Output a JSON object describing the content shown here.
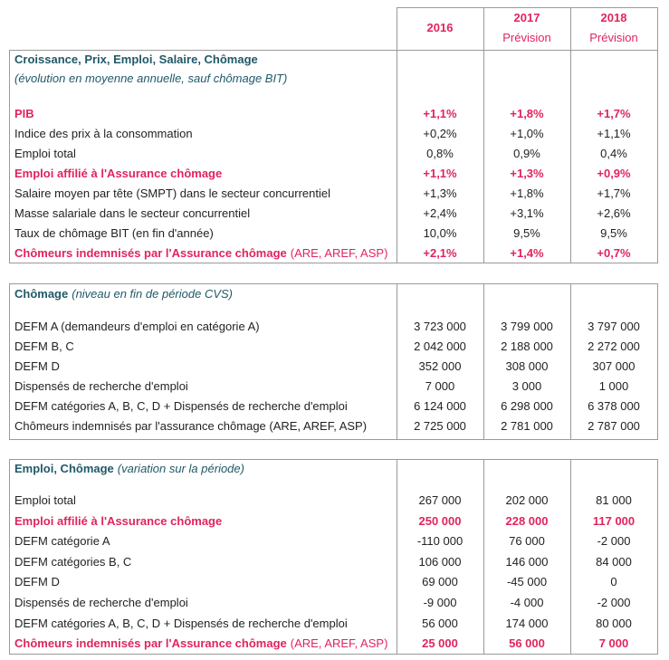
{
  "header": {
    "columns": [
      {
        "year": "2016"
      },
      {
        "year": "2017",
        "note": "Prévision"
      },
      {
        "year": "2018",
        "note": "Prévision"
      }
    ]
  },
  "sections": [
    {
      "title": "Croissance, Prix, Emploi, Salaire, Chômage",
      "subtitle": "(évolution en moyenne annuelle, sauf chômage BIT)",
      "rows": [
        {
          "label": "PIB",
          "values": [
            "+1,1%",
            "+1,8%",
            "+1,7%"
          ],
          "color": "#e0245e"
        },
        {
          "label": "Indice des prix à la consommation",
          "values": [
            "+0,2%",
            "+1,0%",
            "+1,1%"
          ]
        },
        {
          "label": "Emploi total",
          "values": [
            "0,8%",
            "0,9%",
            "0,4%"
          ]
        },
        {
          "label": "Emploi affilié à l'Assurance chômage",
          "values": [
            "+1,1%",
            "+1,3%",
            "+0,9%"
          ],
          "color": "#e0245e"
        },
        {
          "label": "Salaire moyen par tête (SMPT) dans le secteur concurrentiel",
          "values": [
            "+1,3%",
            "+1,8%",
            "+1,7%"
          ]
        },
        {
          "label": "Masse salariale dans le secteur concurrentiel",
          "values": [
            "+2,4%",
            "+3,1%",
            "+2,6%"
          ]
        },
        {
          "label": "Taux de chômage BIT (en fin d'année)",
          "values": [
            "10,0%",
            "9,5%",
            "9,5%"
          ]
        },
        {
          "label": "Chômeurs indemnisés par l'Assurance chômage",
          "label_suffix": "(ARE, AREF, ASP)",
          "values": [
            "+2,1%",
            "+1,4%",
            "+0,7%"
          ],
          "color": "#e0245e"
        }
      ]
    },
    {
      "title": "Chômage",
      "subtitle": "(niveau en fin de période CVS)",
      "rows": [
        {
          "label": "DEFM A (demandeurs d'emploi en catégorie A)",
          "values": [
            "3 723 000",
            "3 799 000",
            "3 797 000"
          ]
        },
        {
          "label": "DEFM B, C",
          "values": [
            "2 042 000",
            "2 188 000",
            "2 272 000"
          ]
        },
        {
          "label": "DEFM D",
          "values": [
            "352 000",
            "308 000",
            "307 000"
          ]
        },
        {
          "label": "Dispensés de recherche d'emploi",
          "values": [
            "7 000",
            "3 000",
            "1 000"
          ]
        },
        {
          "label": "DEFM catégories A, B, C, D + Dispensés de recherche d'emploi",
          "values": [
            "6 124 000",
            "6 298 000",
            "6 378 000"
          ]
        },
        {
          "label": "Chômeurs indemnisés par l'assurance chômage (ARE, AREF, ASP)",
          "values": [
            "2 725 000",
            "2 781 000",
            "2 787 000"
          ]
        }
      ]
    },
    {
      "title": "Emploi, Chômage",
      "subtitle": "(variation sur la période)",
      "rows": [
        {
          "label": "Emploi total",
          "values": [
            "267 000",
            "202 000",
            "81 000"
          ]
        },
        {
          "label": "Emploi affilié à l'Assurance chômage",
          "values": [
            "250 000",
            "228 000",
            "117 000"
          ],
          "color": "#e0245e"
        },
        {
          "label": "DEFM catégorie A",
          "values": [
            "-110 000",
            "76 000",
            "-2 000"
          ]
        },
        {
          "label": "DEFM catégories B, C",
          "values": [
            "106 000",
            "146 000",
            "84 000"
          ]
        },
        {
          "label": "DEFM D",
          "values": [
            "69 000",
            "-45 000",
            "0"
          ]
        },
        {
          "label": "Dispensés de recherche d'emploi",
          "values": [
            "-9 000",
            "-4 000",
            "-2 000"
          ]
        },
        {
          "label": "DEFM catégories A, B, C, D + Dispensés de recherche d'emploi",
          "values": [
            "56 000",
            "174 000",
            "80 000"
          ]
        },
        {
          "label": "Chômeurs indemnisés par l'Assurance chômage",
          "label_suffix": "(ARE, AREF, ASP)",
          "values": [
            "25 000",
            "56 000",
            "7 000"
          ],
          "color": "#e0245e"
        }
      ]
    }
  ]
}
